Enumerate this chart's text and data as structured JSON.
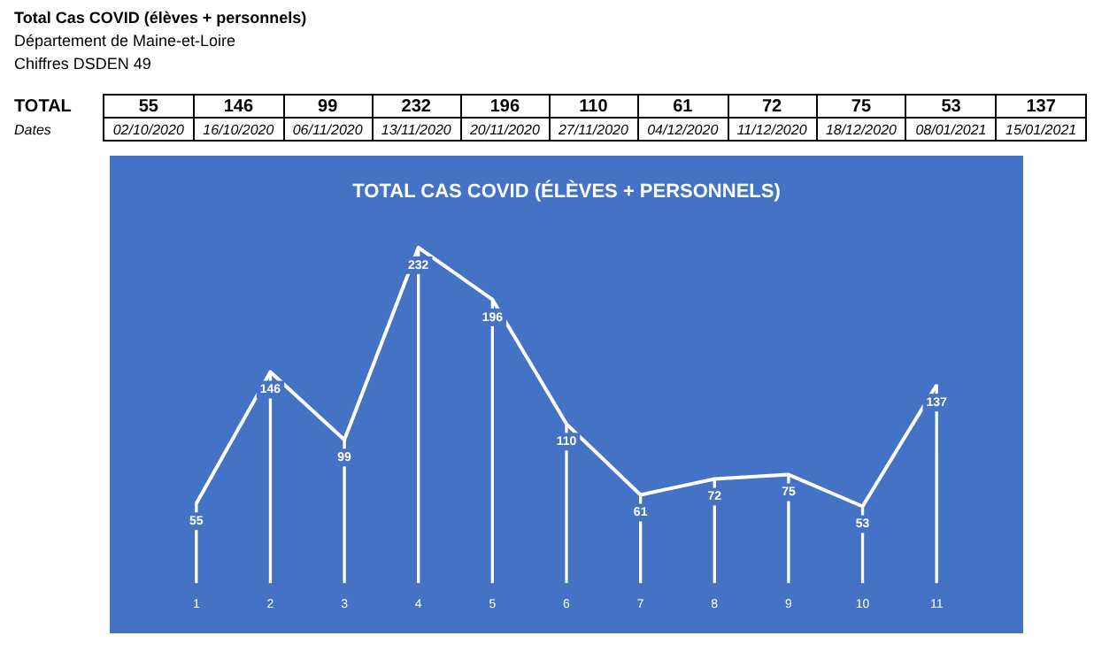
{
  "chart_data": [
    {
      "type": "other",
      "title": "Total Cas COVID (élèves + personnels)",
      "subtitle": "Département de Maine-et-Loire",
      "annotations": [
        "Chiffres DSDEN 49",
        "TOTAL",
        "Dates"
      ],
      "categories": [
        "02/10/2020",
        "16/10/2020",
        "06/11/2020",
        "13/11/2020",
        "20/11/2020",
        "27/11/2020",
        "04/12/2020",
        "11/12/2020",
        "18/12/2020",
        "08/01/2021",
        "15/01/2021"
      ],
      "values": [
        55,
        146,
        99,
        232,
        196,
        110,
        61,
        72,
        75,
        53,
        137
      ],
      "data_labels": true
    },
    {
      "type": "line",
      "title": "TOTAL CAS COVID (ÉLÈVES + PERSONNELS)",
      "categories": [
        "1",
        "2",
        "3",
        "4",
        "5",
        "6",
        "7",
        "8",
        "9",
        "10",
        "11"
      ],
      "series": [
        {
          "type": "line",
          "color": "#ffffff",
          "values": [
            55,
            146,
            99,
            232,
            196,
            110,
            61,
            72,
            75,
            53,
            137
          ],
          "value_labels": [
            "55",
            "146",
            "99",
            "232",
            "196",
            "110",
            "61",
            "72",
            "75",
            "53",
            "137"
          ]
        },
        {
          "type": "bar",
          "color": "#ffffff",
          "values": [
            55,
            146,
            99,
            232,
            196,
            110,
            61,
            72,
            75,
            53,
            137
          ]
        }
      ],
      "legend": false,
      "marker": "none",
      "tick_labels": "x"
    }
  ]
}
